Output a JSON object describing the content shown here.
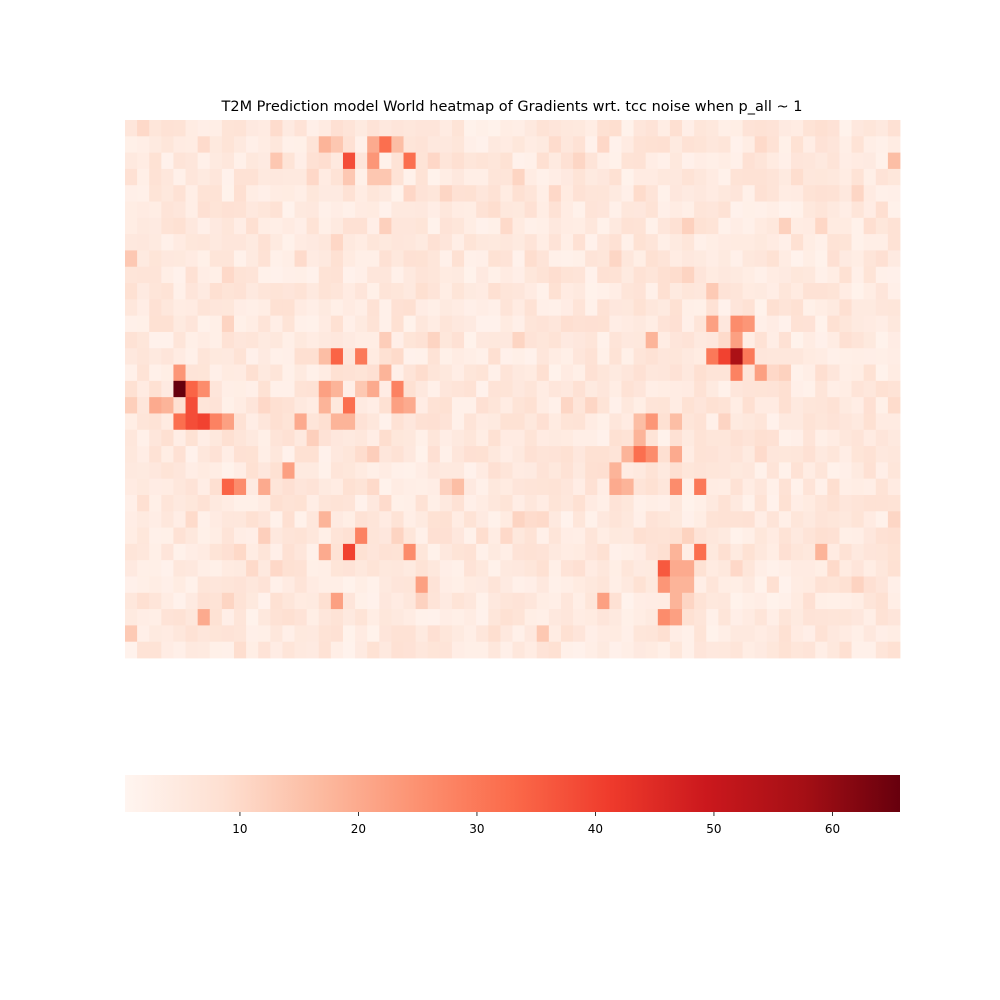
{
  "chart_data": {
    "type": "heatmap",
    "title": "T2M Prediction model World heatmap of Gradients wrt. tcc noise when p_all ~ 1",
    "colormap": "Reds",
    "axes_visible": false,
    "grid": false,
    "colorbar": {
      "orientation": "horizontal",
      "placement": "bottom",
      "min": 0.3,
      "max": 65.7,
      "ticks": [
        10,
        20,
        30,
        40,
        50,
        60
      ],
      "tick_labels": [
        "10",
        "20",
        "30",
        "40",
        "50",
        "60"
      ]
    },
    "rows": 33,
    "cols": 64,
    "hotspots": [
      {
        "r": 1,
        "c": 16,
        "v": 18
      },
      {
        "r": 1,
        "c": 17,
        "v": 14
      },
      {
        "r": 1,
        "c": 20,
        "v": 20
      },
      {
        "r": 1,
        "c": 21,
        "v": 32
      },
      {
        "r": 1,
        "c": 22,
        "v": 16
      },
      {
        "r": 2,
        "c": 18,
        "v": 38
      },
      {
        "r": 2,
        "c": 20,
        "v": 24
      },
      {
        "r": 2,
        "c": 23,
        "v": 32
      },
      {
        "r": 2,
        "c": 12,
        "v": 14
      },
      {
        "r": 2,
        "c": 63,
        "v": 16
      },
      {
        "r": 3,
        "c": 20,
        "v": 14
      },
      {
        "r": 3,
        "c": 21,
        "v": 14
      },
      {
        "r": 12,
        "c": 48,
        "v": 22
      },
      {
        "r": 12,
        "c": 50,
        "v": 26
      },
      {
        "r": 12,
        "c": 51,
        "v": 24
      },
      {
        "r": 13,
        "c": 43,
        "v": 18
      },
      {
        "r": 13,
        "c": 50,
        "v": 22
      },
      {
        "r": 14,
        "c": 17,
        "v": 34
      },
      {
        "r": 14,
        "c": 19,
        "v": 30
      },
      {
        "r": 14,
        "c": 16,
        "v": 16
      },
      {
        "r": 14,
        "c": 48,
        "v": 30
      },
      {
        "r": 14,
        "c": 49,
        "v": 40
      },
      {
        "r": 14,
        "c": 50,
        "v": 56
      },
      {
        "r": 14,
        "c": 51,
        "v": 30
      },
      {
        "r": 15,
        "c": 4,
        "v": 24
      },
      {
        "r": 15,
        "c": 21,
        "v": 18
      },
      {
        "r": 15,
        "c": 50,
        "v": 28
      },
      {
        "r": 15,
        "c": 52,
        "v": 22
      },
      {
        "r": 16,
        "c": 4,
        "v": 65.7
      },
      {
        "r": 16,
        "c": 5,
        "v": 34
      },
      {
        "r": 16,
        "c": 6,
        "v": 26
      },
      {
        "r": 16,
        "c": 16,
        "v": 22
      },
      {
        "r": 16,
        "c": 17,
        "v": 18
      },
      {
        "r": 16,
        "c": 20,
        "v": 20
      },
      {
        "r": 16,
        "c": 22,
        "v": 28
      },
      {
        "r": 17,
        "c": 2,
        "v": 20
      },
      {
        "r": 17,
        "c": 3,
        "v": 18
      },
      {
        "r": 17,
        "c": 5,
        "v": 38
      },
      {
        "r": 17,
        "c": 18,
        "v": 32
      },
      {
        "r": 17,
        "c": 16,
        "v": 18
      },
      {
        "r": 17,
        "c": 22,
        "v": 22
      },
      {
        "r": 17,
        "c": 23,
        "v": 20
      },
      {
        "r": 18,
        "c": 4,
        "v": 32
      },
      {
        "r": 18,
        "c": 5,
        "v": 38
      },
      {
        "r": 18,
        "c": 6,
        "v": 40
      },
      {
        "r": 18,
        "c": 7,
        "v": 28
      },
      {
        "r": 18,
        "c": 8,
        "v": 22
      },
      {
        "r": 18,
        "c": 17,
        "v": 18
      },
      {
        "r": 18,
        "c": 18,
        "v": 18
      },
      {
        "r": 18,
        "c": 14,
        "v": 20
      },
      {
        "r": 18,
        "c": 42,
        "v": 16
      },
      {
        "r": 18,
        "c": 43,
        "v": 24
      },
      {
        "r": 18,
        "c": 45,
        "v": 16
      },
      {
        "r": 19,
        "c": 42,
        "v": 18
      },
      {
        "r": 20,
        "c": 41,
        "v": 18
      },
      {
        "r": 20,
        "c": 42,
        "v": 32
      },
      {
        "r": 20,
        "c": 43,
        "v": 26
      },
      {
        "r": 20,
        "c": 45,
        "v": 20
      },
      {
        "r": 21,
        "c": 40,
        "v": 18
      },
      {
        "r": 21,
        "c": 13,
        "v": 22
      },
      {
        "r": 22,
        "c": 8,
        "v": 34
      },
      {
        "r": 22,
        "c": 9,
        "v": 26
      },
      {
        "r": 22,
        "c": 11,
        "v": 20
      },
      {
        "r": 22,
        "c": 40,
        "v": 20
      },
      {
        "r": 22,
        "c": 41,
        "v": 18
      },
      {
        "r": 22,
        "c": 45,
        "v": 26
      },
      {
        "r": 22,
        "c": 47,
        "v": 30
      },
      {
        "r": 22,
        "c": 27,
        "v": 16
      },
      {
        "r": 24,
        "c": 16,
        "v": 18
      },
      {
        "r": 25,
        "c": 19,
        "v": 28
      },
      {
        "r": 26,
        "c": 18,
        "v": 40
      },
      {
        "r": 26,
        "c": 16,
        "v": 20
      },
      {
        "r": 26,
        "c": 23,
        "v": 26
      },
      {
        "r": 26,
        "c": 47,
        "v": 32
      },
      {
        "r": 26,
        "c": 45,
        "v": 18
      },
      {
        "r": 26,
        "c": 57,
        "v": 18
      },
      {
        "r": 27,
        "c": 44,
        "v": 36
      },
      {
        "r": 27,
        "c": 45,
        "v": 20
      },
      {
        "r": 27,
        "c": 46,
        "v": 20
      },
      {
        "r": 28,
        "c": 24,
        "v": 22
      },
      {
        "r": 28,
        "c": 44,
        "v": 24
      },
      {
        "r": 28,
        "c": 45,
        "v": 18
      },
      {
        "r": 28,
        "c": 46,
        "v": 18
      },
      {
        "r": 29,
        "c": 17,
        "v": 22
      },
      {
        "r": 29,
        "c": 39,
        "v": 22
      },
      {
        "r": 29,
        "c": 45,
        "v": 18
      },
      {
        "r": 30,
        "c": 44,
        "v": 26
      },
      {
        "r": 30,
        "c": 45,
        "v": 22
      },
      {
        "r": 30,
        "c": 6,
        "v": 20
      }
    ],
    "background_level": 5
  }
}
